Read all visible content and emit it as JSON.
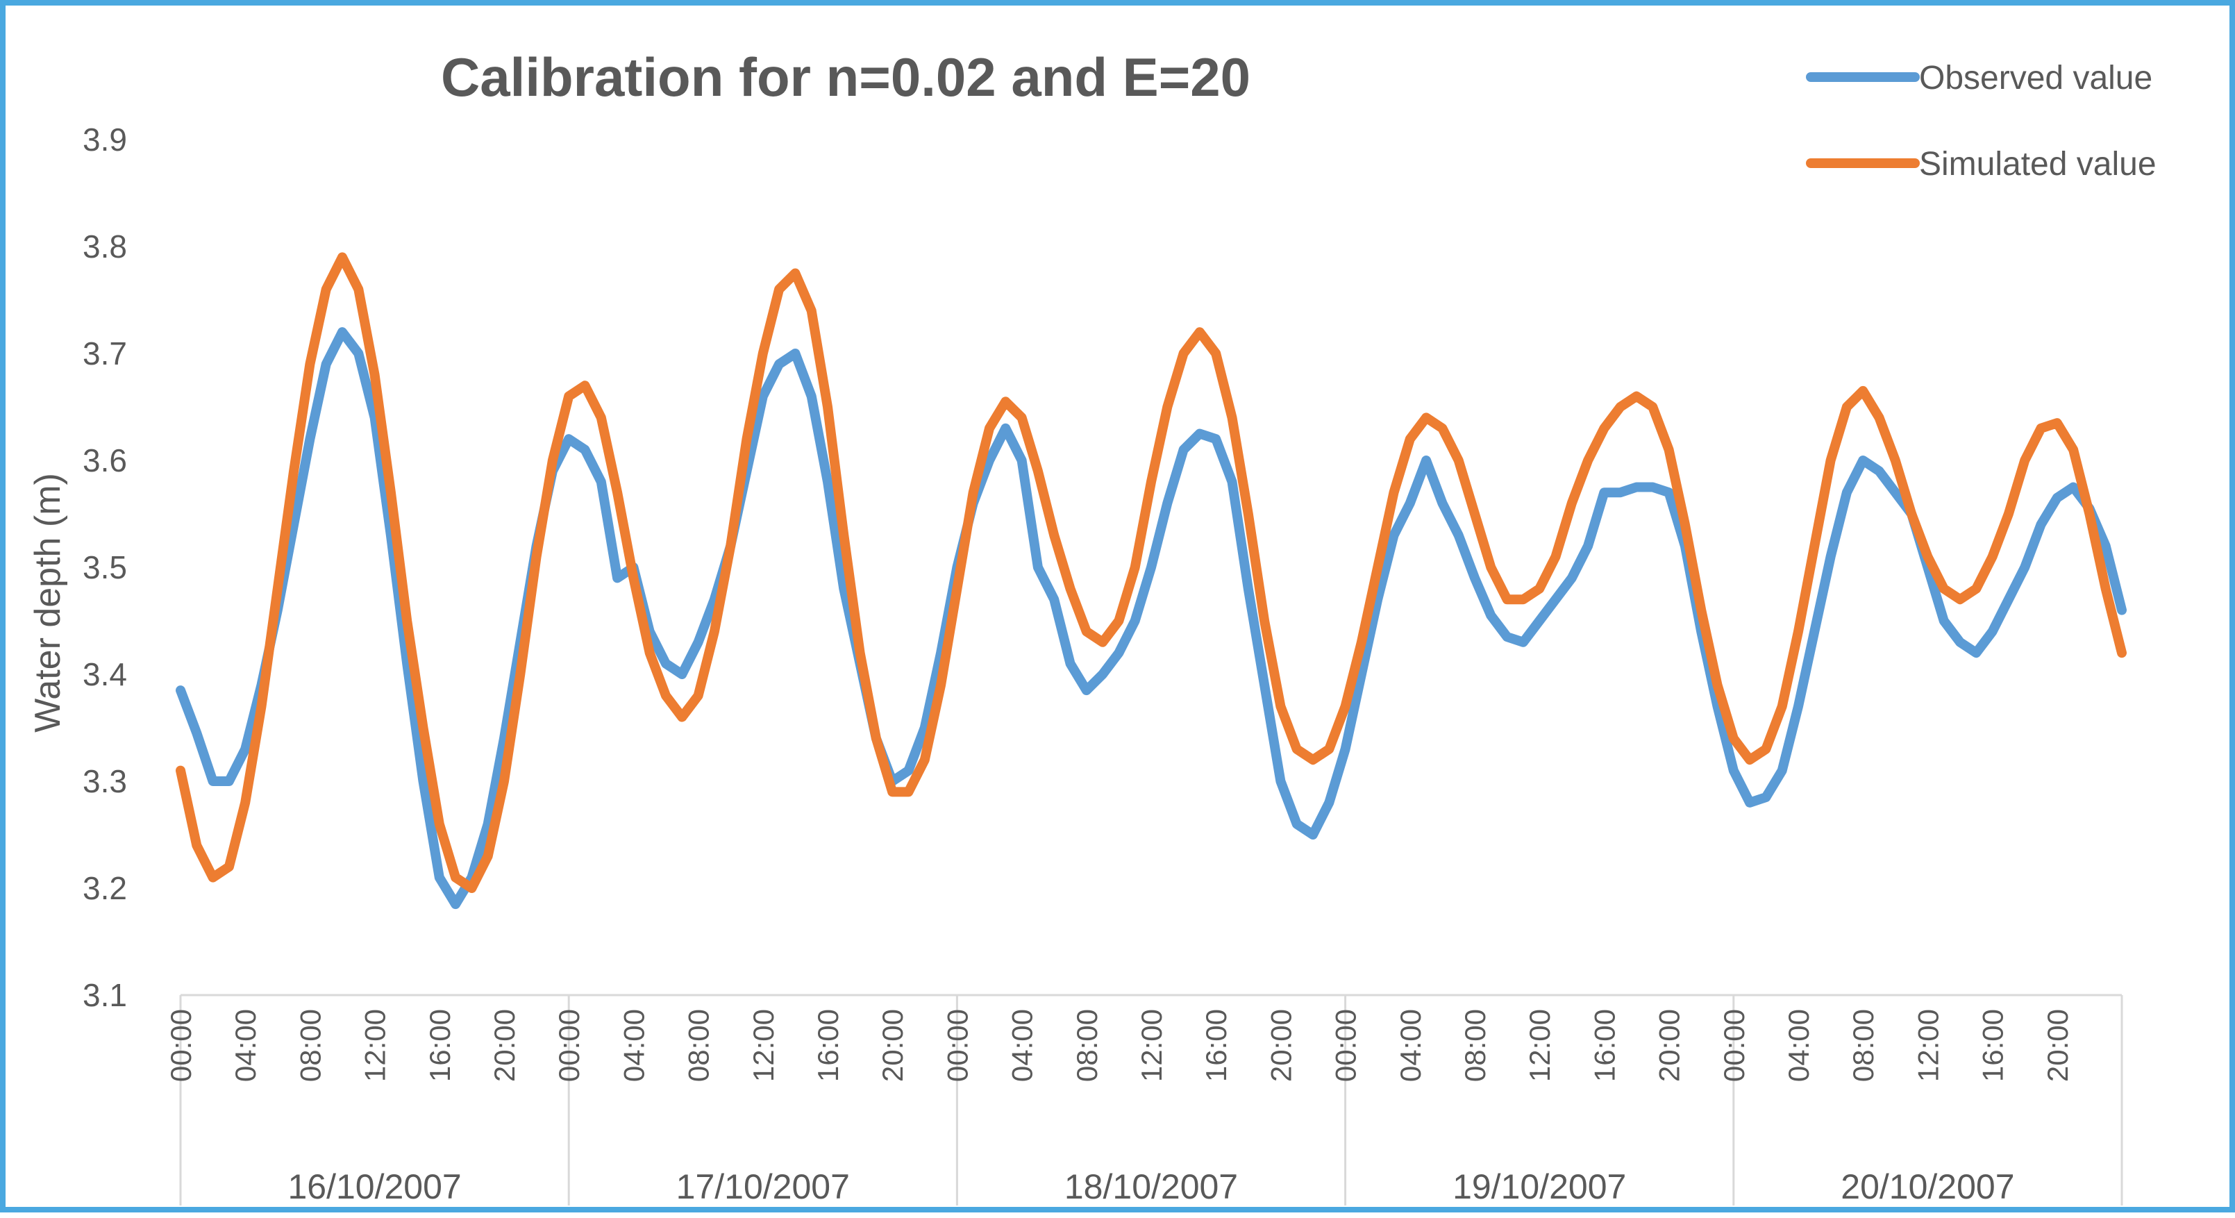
{
  "chart_data": {
    "type": "line",
    "title": "Calibration for n=0.02 and E=20",
    "xlabel": "",
    "ylabel": "Water depth (m)",
    "ylim": [
      3.1,
      3.9
    ],
    "yticks": [
      "3.1",
      "3.2",
      "3.3",
      "3.4",
      "3.5",
      "3.6",
      "3.7",
      "3.8",
      "3.9"
    ],
    "grid": false,
    "legend_position": "top-right",
    "x_hours_total": 120,
    "hour_tick_labels": [
      "00:00",
      "04:00",
      "08:00",
      "12:00",
      "16:00",
      "20:00"
    ],
    "dates": [
      "16/10/2007",
      "17/10/2007",
      "18/10/2007",
      "19/10/2007",
      "20/10/2007"
    ],
    "x": [
      0,
      1,
      2,
      3,
      4,
      5,
      6,
      7,
      8,
      9,
      10,
      11,
      12,
      13,
      14,
      15,
      16,
      17,
      18,
      19,
      20,
      21,
      22,
      23,
      24,
      25,
      26,
      27,
      28,
      29,
      30,
      31,
      32,
      33,
      34,
      35,
      36,
      37,
      38,
      39,
      40,
      41,
      42,
      43,
      44,
      45,
      46,
      47,
      48,
      49,
      50,
      51,
      52,
      53,
      54,
      55,
      56,
      57,
      58,
      59,
      60,
      61,
      62,
      63,
      64,
      65,
      66,
      67,
      68,
      69,
      70,
      71,
      72,
      73,
      74,
      75,
      76,
      77,
      78,
      79,
      80,
      81,
      82,
      83,
      84,
      85,
      86,
      87,
      88,
      89,
      90,
      91,
      92,
      93,
      94,
      95,
      96,
      97,
      98,
      99,
      100,
      101,
      102,
      103,
      104,
      105,
      106,
      107,
      108,
      109,
      110,
      111,
      112,
      113,
      114,
      115,
      116,
      117,
      118,
      119,
      120
    ],
    "series": [
      {
        "name": "Observed value",
        "color": "#5b9bd5",
        "values": [
          3.385,
          3.345,
          3.3,
          3.3,
          3.33,
          3.39,
          3.46,
          3.54,
          3.62,
          3.69,
          3.72,
          3.7,
          3.64,
          3.53,
          3.41,
          3.3,
          3.21,
          3.185,
          3.21,
          3.26,
          3.34,
          3.43,
          3.52,
          3.59,
          3.62,
          3.61,
          3.58,
          3.49,
          3.5,
          3.44,
          3.41,
          3.4,
          3.43,
          3.47,
          3.52,
          3.59,
          3.66,
          3.69,
          3.7,
          3.66,
          3.58,
          3.48,
          3.41,
          3.34,
          3.3,
          3.31,
          3.35,
          3.42,
          3.5,
          3.56,
          3.6,
          3.63,
          3.6,
          3.5,
          3.47,
          3.41,
          3.385,
          3.4,
          3.42,
          3.45,
          3.5,
          3.56,
          3.61,
          3.625,
          3.62,
          3.58,
          3.48,
          3.39,
          3.3,
          3.26,
          3.25,
          3.28,
          3.33,
          3.4,
          3.47,
          3.53,
          3.56,
          3.6,
          3.56,
          3.53,
          3.49,
          3.455,
          3.435,
          3.43,
          3.45,
          3.47,
          3.49,
          3.52,
          3.57,
          3.57,
          3.575,
          3.575,
          3.57,
          3.52,
          3.44,
          3.37,
          3.31,
          3.28,
          3.285,
          3.31,
          3.37,
          3.44,
          3.51,
          3.57,
          3.6,
          3.59,
          3.57,
          3.55,
          3.5,
          3.45,
          3.43,
          3.42,
          3.44,
          3.47,
          3.5,
          3.54,
          3.565,
          3.575,
          3.555,
          3.52,
          3.46
        ]
      },
      {
        "name": "Simulated value",
        "color": "#ed7d31",
        "values": [
          3.31,
          3.24,
          3.21,
          3.22,
          3.28,
          3.37,
          3.48,
          3.59,
          3.69,
          3.76,
          3.79,
          3.76,
          3.68,
          3.57,
          3.45,
          3.35,
          3.26,
          3.21,
          3.2,
          3.23,
          3.3,
          3.4,
          3.51,
          3.6,
          3.66,
          3.67,
          3.64,
          3.57,
          3.49,
          3.42,
          3.38,
          3.36,
          3.38,
          3.44,
          3.52,
          3.62,
          3.7,
          3.76,
          3.775,
          3.74,
          3.65,
          3.53,
          3.42,
          3.34,
          3.29,
          3.29,
          3.32,
          3.39,
          3.48,
          3.57,
          3.63,
          3.655,
          3.64,
          3.59,
          3.53,
          3.48,
          3.44,
          3.43,
          3.45,
          3.5,
          3.58,
          3.65,
          3.7,
          3.72,
          3.7,
          3.64,
          3.55,
          3.45,
          3.37,
          3.33,
          3.32,
          3.33,
          3.37,
          3.43,
          3.5,
          3.57,
          3.62,
          3.64,
          3.63,
          3.6,
          3.55,
          3.5,
          3.47,
          3.47,
          3.48,
          3.51,
          3.56,
          3.6,
          3.63,
          3.65,
          3.66,
          3.65,
          3.61,
          3.54,
          3.46,
          3.39,
          3.34,
          3.32,
          3.33,
          3.37,
          3.44,
          3.52,
          3.6,
          3.65,
          3.665,
          3.64,
          3.6,
          3.55,
          3.51,
          3.48,
          3.47,
          3.48,
          3.51,
          3.55,
          3.6,
          3.63,
          3.635,
          3.61,
          3.55,
          3.48,
          3.42
        ]
      }
    ]
  }
}
